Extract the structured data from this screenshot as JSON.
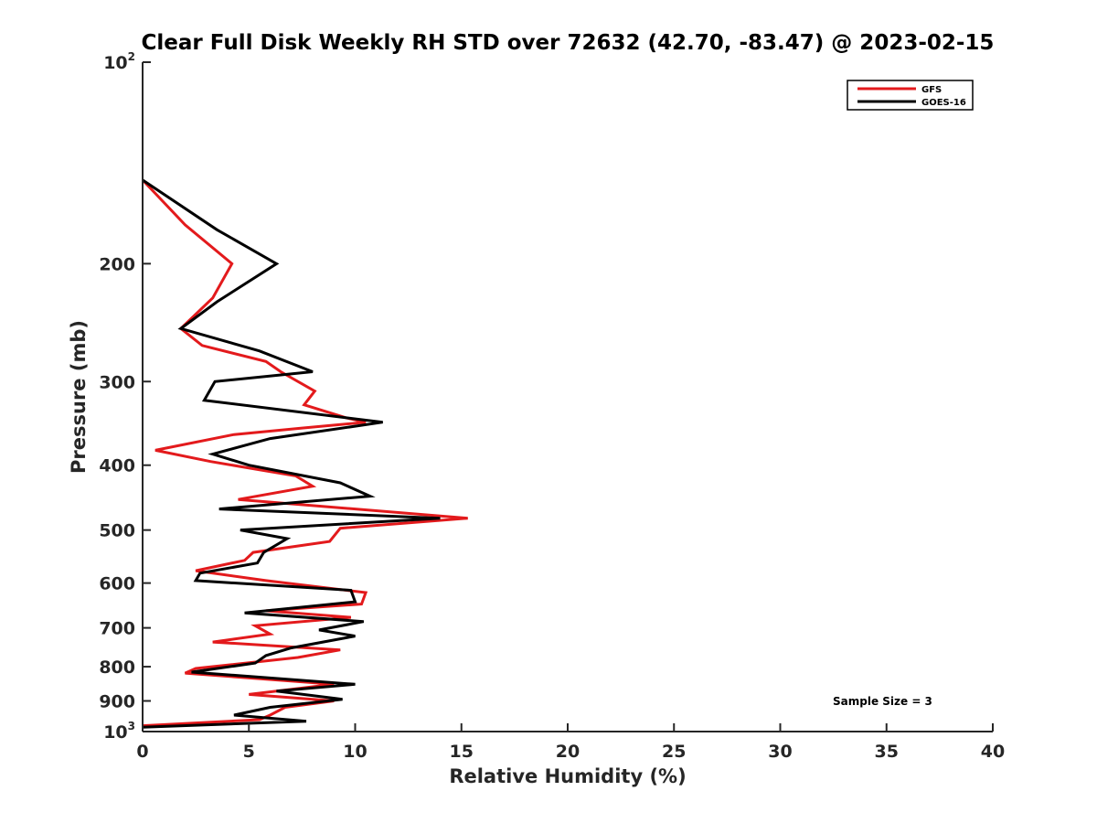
{
  "chart_data": {
    "type": "line",
    "title": "Clear Full Disk Weekly RH STD over 72632 (42.70, -83.47) @ 2023-02-15",
    "xlabel": "Relative Humidity (%)",
    "ylabel": "Pressure (mb)",
    "xlim": [
      0,
      40
    ],
    "ylim": [
      100,
      1000
    ],
    "y_scale": "log",
    "y_reversed": true,
    "x_ticks": [
      0,
      5,
      10,
      15,
      20,
      25,
      30,
      35,
      40
    ],
    "y_ticks": [
      {
        "value": 100,
        "base": "10",
        "exp": "2"
      },
      {
        "value": 200,
        "label": "200"
      },
      {
        "value": 300,
        "label": "300"
      },
      {
        "value": 400,
        "label": "400"
      },
      {
        "value": 500,
        "label": "500"
      },
      {
        "value": 600,
        "label": "600"
      },
      {
        "value": 700,
        "label": "700"
      },
      {
        "value": 800,
        "label": "800"
      },
      {
        "value": 900,
        "label": "900"
      },
      {
        "value": 1000,
        "base": "10",
        "exp": "3"
      }
    ],
    "legend_position": "top-right",
    "annotation": "Sample Size = 3",
    "series": [
      {
        "name": "GFS",
        "color": "#e31a1c",
        "points": [
          [
            0,
            150
          ],
          [
            2.0,
            175
          ],
          [
            4.2,
            200
          ],
          [
            3.3,
            225
          ],
          [
            1.8,
            250
          ],
          [
            2.8,
            265
          ],
          [
            5.8,
            280
          ],
          [
            6.5,
            290
          ],
          [
            8.1,
            310
          ],
          [
            7.6,
            325
          ],
          [
            9.6,
            340
          ],
          [
            10.5,
            345
          ],
          [
            7.5,
            352
          ],
          [
            4.3,
            360
          ],
          [
            0.6,
            380
          ],
          [
            3.2,
            395
          ],
          [
            7.2,
            415
          ],
          [
            8.0,
            430
          ],
          [
            4.5,
            450
          ],
          [
            15.3,
            480
          ],
          [
            9.3,
            497
          ],
          [
            8.8,
            520
          ],
          [
            5.2,
            540
          ],
          [
            4.8,
            555
          ],
          [
            2.5,
            575
          ],
          [
            5.8,
            595
          ],
          [
            10.5,
            620
          ],
          [
            10.3,
            645
          ],
          [
            5.8,
            660
          ],
          [
            9.8,
            675
          ],
          [
            5.3,
            695
          ],
          [
            6.0,
            715
          ],
          [
            3.3,
            735
          ],
          [
            9.3,
            755
          ],
          [
            7.3,
            775
          ],
          [
            2.5,
            805
          ],
          [
            2.0,
            818
          ],
          [
            9.0,
            850
          ],
          [
            5.0,
            880
          ],
          [
            9.0,
            900
          ],
          [
            6.7,
            920
          ],
          [
            6.0,
            945
          ],
          [
            5.5,
            960
          ],
          [
            0,
            980
          ]
        ]
      },
      {
        "name": "GOES-16",
        "color": "#000000",
        "points": [
          [
            0,
            150
          ],
          [
            3.5,
            178
          ],
          [
            6.3,
            200
          ],
          [
            3.5,
            228
          ],
          [
            1.8,
            250
          ],
          [
            5.5,
            270
          ],
          [
            8.0,
            290
          ],
          [
            3.4,
            300
          ],
          [
            2.9,
            320
          ],
          [
            11.3,
            345
          ],
          [
            6.0,
            365
          ],
          [
            3.3,
            385
          ],
          [
            5.0,
            400
          ],
          [
            9.3,
            425
          ],
          [
            10.7,
            445
          ],
          [
            3.6,
            465
          ],
          [
            14.0,
            480
          ],
          [
            4.6,
            500
          ],
          [
            6.8,
            515
          ],
          [
            5.7,
            540
          ],
          [
            5.4,
            560
          ],
          [
            2.7,
            580
          ],
          [
            2.5,
            595
          ],
          [
            9.8,
            615
          ],
          [
            10.0,
            640
          ],
          [
            4.8,
            665
          ],
          [
            10.4,
            685
          ],
          [
            8.3,
            705
          ],
          [
            10.0,
            720
          ],
          [
            7.0,
            750
          ],
          [
            5.8,
            770
          ],
          [
            5.3,
            790
          ],
          [
            2.3,
            815
          ],
          [
            10.0,
            850
          ],
          [
            6.3,
            870
          ],
          [
            9.4,
            895
          ],
          [
            6.0,
            920
          ],
          [
            4.3,
            945
          ],
          [
            7.7,
            965
          ],
          [
            0,
            985
          ]
        ]
      }
    ]
  }
}
